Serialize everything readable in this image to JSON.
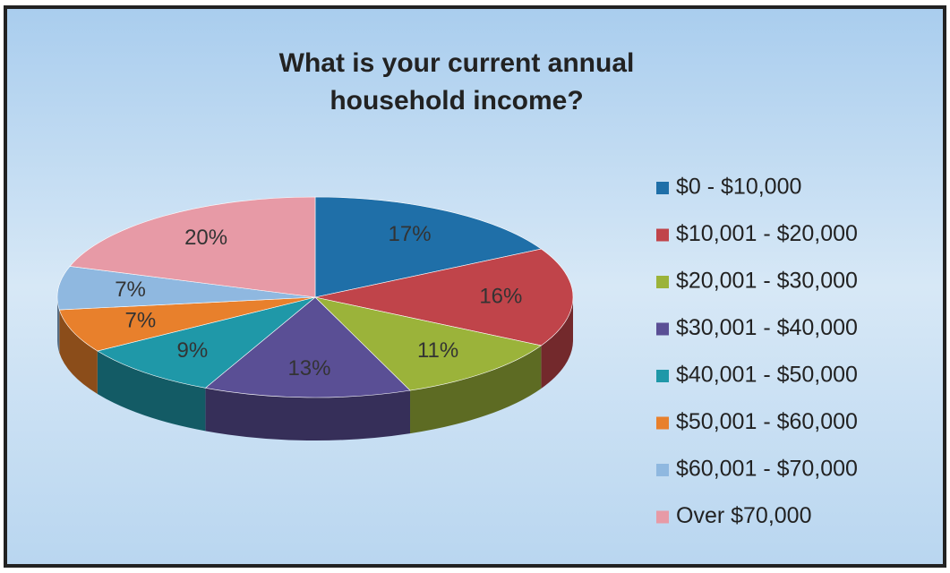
{
  "chart_data": {
    "type": "pie",
    "title": "What is your current annual household income?",
    "categories": [
      "$0 - $10,000",
      "$10,001 - $20,000",
      "$20,001 - $30,000",
      "$30,001 - $40,000",
      "$40,001 - $50,000",
      "$50,001 - $60,000",
      "$60,001 - $70,000",
      "Over $70,000"
    ],
    "values": [
      17,
      16,
      11,
      13,
      9,
      7,
      7,
      20
    ],
    "value_labels": [
      "17%",
      "16%",
      "11%",
      "13%",
      "9%",
      "7%",
      "7%",
      "20%"
    ],
    "colors": [
      "#1f6fa8",
      "#c0444a",
      "#9bb33a",
      "#5a4f95",
      "#1f98a8",
      "#e8802c",
      "#8fb8e0",
      "#e79aa6"
    ],
    "legend": "right"
  }
}
